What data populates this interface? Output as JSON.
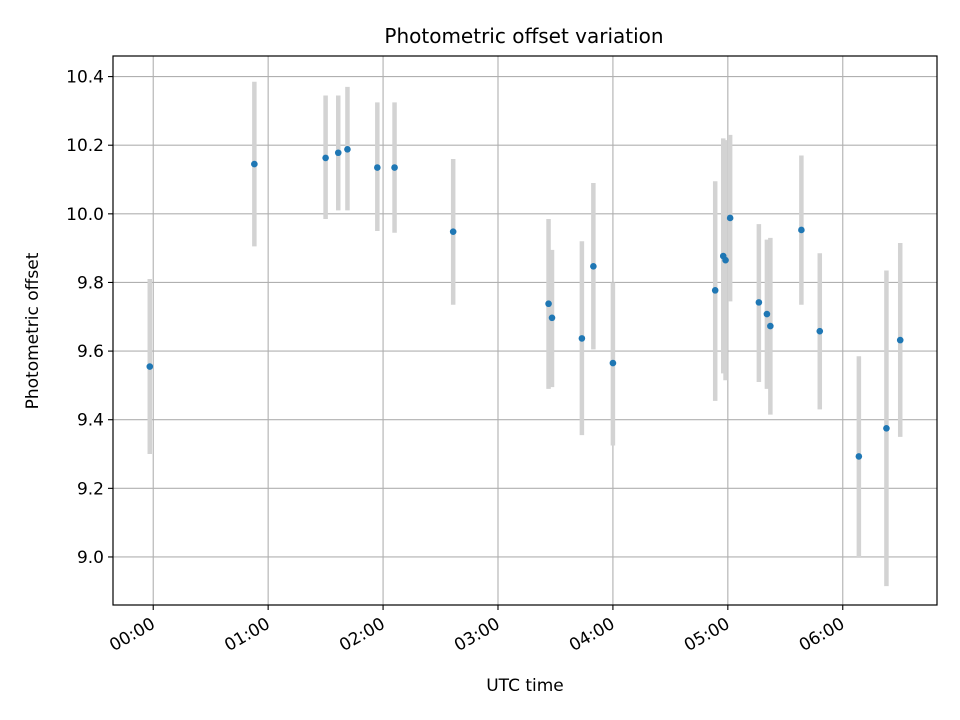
{
  "chart_data": {
    "type": "scatter",
    "title": "Photometric offset variation",
    "xlabel": "UTC time",
    "ylabel": "Photometric offset",
    "x_unit": "hours since 00:00 UTC",
    "xlim": [
      -0.35,
      6.82
    ],
    "ylim": [
      8.86,
      10.46
    ],
    "grid": true,
    "colors": {
      "marker": "#1f77b4",
      "errorbar": "#d3d3d3",
      "grid": "#b0b0b0",
      "axes": "#000000"
    },
    "x_ticks": [
      {
        "value": 0,
        "label": "00:00"
      },
      {
        "value": 1,
        "label": "01:00"
      },
      {
        "value": 2,
        "label": "02:00"
      },
      {
        "value": 3,
        "label": "03:00"
      },
      {
        "value": 4,
        "label": "04:00"
      },
      {
        "value": 5,
        "label": "05:00"
      },
      {
        "value": 6,
        "label": "06:00"
      }
    ],
    "y_ticks": [
      {
        "value": 9.0,
        "label": "9.0"
      },
      {
        "value": 9.2,
        "label": "9.2"
      },
      {
        "value": 9.4,
        "label": "9.4"
      },
      {
        "value": 9.6,
        "label": "9.6"
      },
      {
        "value": 9.8,
        "label": "9.8"
      },
      {
        "value": 10.0,
        "label": "10.0"
      },
      {
        "value": 10.2,
        "label": "10.2"
      },
      {
        "value": 10.4,
        "label": "10.4"
      }
    ],
    "series": [
      {
        "name": "Photometric offset",
        "points": [
          {
            "x": -0.03,
            "y": 9.555,
            "lo": 9.3,
            "hi": 9.81
          },
          {
            "x": 0.88,
            "y": 10.145,
            "lo": 9.905,
            "hi": 10.385
          },
          {
            "x": 1.5,
            "y": 10.163,
            "lo": 9.985,
            "hi": 10.345
          },
          {
            "x": 1.61,
            "y": 10.178,
            "lo": 10.01,
            "hi": 10.345
          },
          {
            "x": 1.69,
            "y": 10.188,
            "lo": 10.01,
            "hi": 10.37
          },
          {
            "x": 1.95,
            "y": 10.135,
            "lo": 9.95,
            "hi": 10.325
          },
          {
            "x": 2.1,
            "y": 10.135,
            "lo": 9.945,
            "hi": 10.325
          },
          {
            "x": 2.61,
            "y": 9.948,
            "lo": 9.735,
            "hi": 10.16
          },
          {
            "x": 3.44,
            "y": 9.738,
            "lo": 9.49,
            "hi": 9.985
          },
          {
            "x": 3.47,
            "y": 9.697,
            "lo": 9.495,
            "hi": 9.895
          },
          {
            "x": 3.73,
            "y": 9.637,
            "lo": 9.355,
            "hi": 9.92
          },
          {
            "x": 3.83,
            "y": 9.847,
            "lo": 9.605,
            "hi": 10.09
          },
          {
            "x": 4.0,
            "y": 9.565,
            "lo": 9.325,
            "hi": 9.8
          },
          {
            "x": 4.89,
            "y": 9.777,
            "lo": 9.455,
            "hi": 10.095
          },
          {
            "x": 4.96,
            "y": 9.877,
            "lo": 9.535,
            "hi": 10.22
          },
          {
            "x": 4.98,
            "y": 9.865,
            "lo": 9.515,
            "hi": 10.215
          },
          {
            "x": 5.02,
            "y": 9.988,
            "lo": 9.745,
            "hi": 10.23
          },
          {
            "x": 5.27,
            "y": 9.742,
            "lo": 9.51,
            "hi": 9.97
          },
          {
            "x": 5.34,
            "y": 9.708,
            "lo": 9.49,
            "hi": 9.925
          },
          {
            "x": 5.37,
            "y": 9.673,
            "lo": 9.415,
            "hi": 9.93
          },
          {
            "x": 5.64,
            "y": 9.953,
            "lo": 9.735,
            "hi": 10.17
          },
          {
            "x": 5.8,
            "y": 9.658,
            "lo": 9.43,
            "hi": 9.885
          },
          {
            "x": 6.14,
            "y": 9.293,
            "lo": 9.0,
            "hi": 9.585
          },
          {
            "x": 6.38,
            "y": 9.375,
            "lo": 8.915,
            "hi": 9.835
          },
          {
            "x": 6.5,
            "y": 9.632,
            "lo": 9.35,
            "hi": 9.915
          }
        ]
      }
    ]
  }
}
